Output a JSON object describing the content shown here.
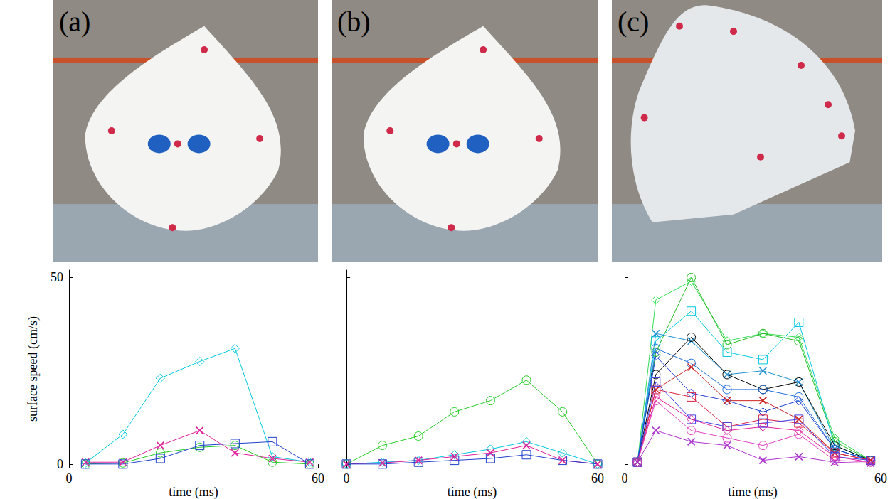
{
  "chart_data": [
    {
      "type": "line",
      "title": "(a)",
      "y_label": "surface speed (cm/s)",
      "x_label": "time (ms)",
      "x": [
        4,
        13,
        22,
        31.5,
        40,
        49,
        58
      ],
      "xlim": [
        0,
        60
      ],
      "xticks": [
        0,
        60
      ],
      "ylim": [
        -1,
        52
      ],
      "yticks": [
        0,
        50
      ],
      "grid": false,
      "series": [
        {
          "color": "#00c8e0",
          "marker": "diamond",
          "values": [
            0.3,
            8,
            23,
            27.5,
            31,
            2,
            0.5
          ]
        },
        {
          "color": "#e0209a",
          "marker": "x",
          "values": [
            0.5,
            0.5,
            5,
            9,
            3,
            1.5,
            0.5
          ]
        },
        {
          "color": "#22cc22",
          "marker": "circle",
          "values": [
            0,
            0.3,
            3,
            4.5,
            5,
            0.5,
            0
          ]
        },
        {
          "color": "#1f3fcf",
          "marker": "square",
          "values": [
            0,
            0,
            1.5,
            5,
            5.5,
            6,
            0
          ]
        }
      ]
    },
    {
      "type": "line",
      "title": "(b)",
      "x_label": "time (ms)",
      "tick_labels": "x",
      "x": [
        0,
        8.6,
        17.2,
        25.8,
        34.4,
        43,
        51.6,
        60
      ],
      "xlim": [
        0,
        60
      ],
      "xticks": [
        0,
        60
      ],
      "ylim": [
        -1,
        52
      ],
      "yticks": [
        0,
        50
      ],
      "grid": false,
      "series": [
        {
          "color": "#22cc22",
          "marker": "circle",
          "values": [
            0,
            5,
            7.5,
            14,
            17,
            22.5,
            14,
            0
          ]
        },
        {
          "color": "#00c8e0",
          "marker": "diamond",
          "values": [
            0,
            0.5,
            1,
            2.5,
            4,
            6,
            3,
            0
          ]
        },
        {
          "color": "#e0209a",
          "marker": "x",
          "values": [
            0,
            0.3,
            1,
            2,
            3,
            5,
            1,
            0
          ]
        },
        {
          "color": "#1f3fcf",
          "marker": "square",
          "values": [
            0,
            0,
            0.5,
            1,
            1.5,
            2.5,
            1,
            0
          ]
        }
      ]
    },
    {
      "type": "line",
      "title": "(c)",
      "x_label": "time (ms)",
      "tick_labels": "x",
      "x": [
        3,
        7.3,
        15.6,
        24,
        32.4,
        40.8,
        49.2,
        57.6
      ],
      "xlim": [
        0,
        60
      ],
      "xticks": [
        0,
        60
      ],
      "ylim": [
        -1,
        52
      ],
      "yticks": [
        0,
        50
      ],
      "grid": false,
      "series": [
        {
          "color": "#33dd55",
          "marker": "diamond",
          "values": [
            0.5,
            44,
            49,
            33,
            35,
            34,
            7,
            1
          ]
        },
        {
          "color": "#22bb22",
          "marker": "circle",
          "values": [
            0.5,
            30,
            50,
            32,
            35,
            33,
            6,
            1
          ]
        },
        {
          "color": "#00c8e0",
          "marker": "square",
          "values": [
            0.5,
            33,
            41,
            30,
            28,
            38,
            5,
            1
          ]
        },
        {
          "color": "#1e90d0",
          "marker": "x",
          "values": [
            0.5,
            35,
            33,
            24,
            25,
            22,
            4,
            1
          ]
        },
        {
          "color": "#000000",
          "marker": "circle",
          "values": [
            0.5,
            24,
            34,
            24,
            20,
            22,
            5,
            1
          ]
        },
        {
          "color": "#1f6fdf",
          "marker": "circle",
          "values": [
            0.5,
            31,
            27,
            20,
            20,
            18,
            4,
            1
          ]
        },
        {
          "color": "#1f3fcf",
          "marker": "diamond",
          "values": [
            0.5,
            29,
            19,
            17,
            14,
            17,
            4,
            1
          ]
        },
        {
          "color": "#cc2222",
          "marker": "x",
          "values": [
            0.5,
            20,
            26,
            17,
            17,
            12,
            3,
            1
          ]
        },
        {
          "color": "#dd2244",
          "marker": "square",
          "values": [
            0.5,
            20,
            18,
            10,
            12,
            11,
            3,
            1
          ]
        },
        {
          "color": "#4040ee",
          "marker": "square",
          "values": [
            0.5,
            22,
            12,
            10,
            11,
            12,
            2,
            1
          ]
        },
        {
          "color": "#e0209a",
          "marker": "diamond",
          "values": [
            0.5,
            18,
            12,
            9,
            10,
            9,
            2,
            0.5
          ]
        },
        {
          "color": "#e040c0",
          "marker": "circle",
          "values": [
            0.5,
            17,
            9,
            7,
            5,
            8,
            1,
            0.5
          ]
        },
        {
          "color": "#aa33cc",
          "marker": "x",
          "values": [
            0.5,
            9,
            6,
            5,
            1,
            2,
            0.5,
            0.2
          ]
        }
      ]
    }
  ]
}
